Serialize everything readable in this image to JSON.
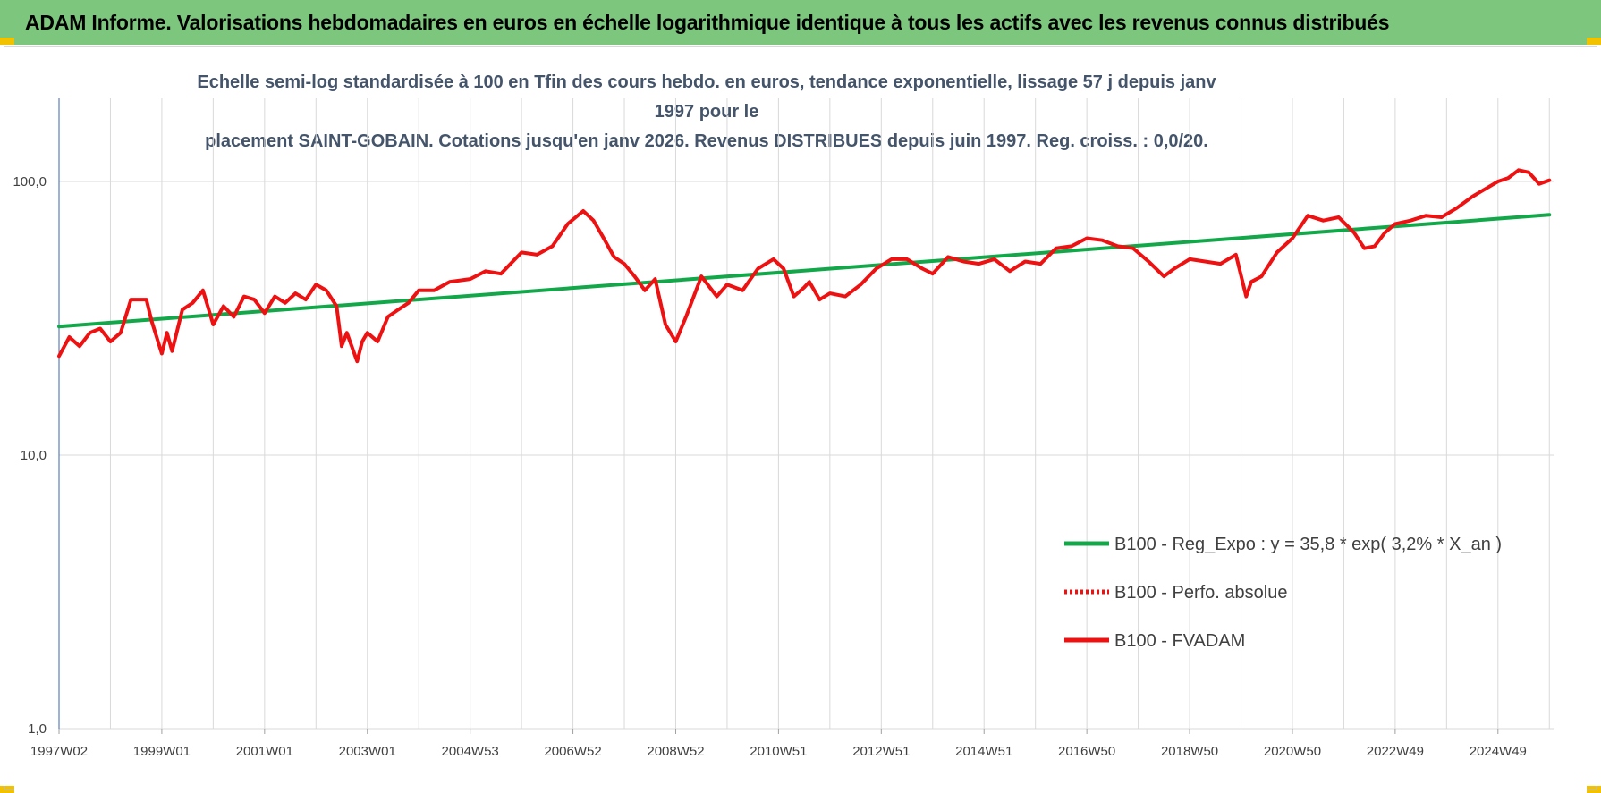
{
  "banner": {
    "title": "ADAM Informe. Valorisations hebdomadaires en euros en échelle logarithmique identique à tous les actifs avec les revenus connus distribués"
  },
  "colors": {
    "banner_bg": "#7dc67d",
    "regression": "#12a84a",
    "series": "#ee1111",
    "title": "#44546a"
  },
  "chart_data": {
    "type": "line",
    "title_lines": [
      "Echelle semi-log standardisée à 100 en Tfin des cours hebdo. en euros, tendance exponentielle, lissage 57 j depuis janv 1997 pour le",
      "placement SAINT-GOBAIN. Cotations jusqu'en janv 2026. Revenus DISTRIBUES depuis juin 1997. Reg. croiss. : 0,0/20."
    ],
    "y_scale": "log",
    "ylim": [
      1,
      200
    ],
    "y_ticks": [
      {
        "value": 1,
        "label": "1,0"
      },
      {
        "value": 10,
        "label": "10,0"
      },
      {
        "value": 100,
        "label": "100,0"
      }
    ],
    "x_range": [
      1997.0,
      2026.1
    ],
    "x_ticks": [
      {
        "x": 1997.0,
        "label": "1997W02"
      },
      {
        "x": 1999.0,
        "label": "1999W01"
      },
      {
        "x": 2001.0,
        "label": "2001W01"
      },
      {
        "x": 2003.0,
        "label": "2003W01"
      },
      {
        "x": 2005.0,
        "label": "2004W53"
      },
      {
        "x": 2007.0,
        "label": "2006W52"
      },
      {
        "x": 2009.0,
        "label": "2008W52"
      },
      {
        "x": 2011.0,
        "label": "2010W51"
      },
      {
        "x": 2013.0,
        "label": "2012W51"
      },
      {
        "x": 2015.0,
        "label": "2014W51"
      },
      {
        "x": 2017.0,
        "label": "2016W50"
      },
      {
        "x": 2019.0,
        "label": "2018W50"
      },
      {
        "x": 2021.0,
        "label": "2020W50"
      },
      {
        "x": 2023.0,
        "label": "2022W49"
      },
      {
        "x": 2025.0,
        "label": "2024W49"
      }
    ],
    "grid": "vertical",
    "legend_position": "right-center",
    "series": [
      {
        "name": "B100 - Reg_Expo : y = 35,8 * exp( 3,2% *  X_an )",
        "color": "#12a84a",
        "style": "solid",
        "x": [
          1997.0,
          2026.0
        ],
        "y": [
          29.5,
          75.5
        ]
      },
      {
        "name": "B100 - Perfo. absolue",
        "color": "#ee1111",
        "style": "dotted",
        "x": [],
        "y": []
      },
      {
        "name": "B100 - FVADAM",
        "color": "#ee1111",
        "style": "solid",
        "x": [
          1997.0,
          1997.2,
          1997.4,
          1997.6,
          1997.8,
          1998.0,
          1998.2,
          1998.4,
          1998.7,
          1998.8,
          1999.0,
          1999.1,
          1999.2,
          1999.4,
          1999.6,
          1999.8,
          2000.0,
          2000.2,
          2000.4,
          2000.6,
          2000.8,
          2001.0,
          2001.2,
          2001.4,
          2001.6,
          2001.8,
          2002.0,
          2002.2,
          2002.4,
          2002.5,
          2002.6,
          2002.8,
          2002.9,
          2003.0,
          2003.2,
          2003.4,
          2003.6,
          2003.8,
          2004.0,
          2004.3,
          2004.6,
          2005.0,
          2005.3,
          2005.6,
          2006.0,
          2006.3,
          2006.6,
          2006.9,
          2007.2,
          2007.4,
          2007.6,
          2007.8,
          2008.0,
          2008.2,
          2008.4,
          2008.6,
          2008.8,
          2009.0,
          2009.2,
          2009.5,
          2009.8,
          2010.0,
          2010.3,
          2010.6,
          2010.9,
          2011.1,
          2011.3,
          2011.5,
          2011.6,
          2011.8,
          2012.0,
          2012.3,
          2012.6,
          2012.9,
          2013.2,
          2013.5,
          2013.8,
          2014.0,
          2014.3,
          2014.6,
          2014.9,
          2015.2,
          2015.5,
          2015.8,
          2016.1,
          2016.4,
          2016.7,
          2017.0,
          2017.3,
          2017.6,
          2017.9,
          2018.2,
          2018.5,
          2018.7,
          2019.0,
          2019.3,
          2019.6,
          2019.9,
          2020.1,
          2020.2,
          2020.4,
          2020.7,
          2021.0,
          2021.3,
          2021.6,
          2021.9,
          2022.2,
          2022.4,
          2022.6,
          2022.8,
          2023.0,
          2023.3,
          2023.6,
          2023.9,
          2024.2,
          2024.5,
          2024.8,
          2025.0,
          2025.2,
          2025.4,
          2025.6,
          2025.8,
          2026.0
        ],
        "y": [
          23.0,
          27.0,
          25.0,
          28.0,
          29.0,
          26.0,
          28.0,
          37.0,
          37.0,
          31.0,
          23.5,
          28.0,
          24.0,
          34.0,
          36.0,
          40.0,
          30.0,
          35.0,
          32.0,
          38.0,
          37.0,
          33.0,
          38.0,
          36.0,
          39.0,
          37.0,
          42.0,
          40.0,
          35.0,
          25.0,
          28.0,
          22.0,
          26.0,
          28.0,
          26.0,
          32.0,
          34.0,
          36.0,
          40.0,
          40.0,
          43.0,
          44.0,
          47.0,
          46.0,
          55.0,
          54.0,
          58.0,
          70.0,
          78.0,
          72.0,
          62.0,
          53.0,
          50.0,
          45.0,
          40.0,
          44.0,
          30.0,
          26.0,
          32.0,
          45.0,
          38.0,
          42.0,
          40.0,
          48.0,
          52.0,
          48.0,
          38.0,
          41.0,
          43.0,
          37.0,
          39.0,
          38.0,
          42.0,
          48.0,
          52.0,
          52.0,
          48.0,
          46.0,
          53.0,
          51.0,
          50.0,
          52.0,
          47.0,
          51.0,
          50.0,
          57.0,
          58.0,
          62.0,
          61.0,
          58.0,
          57.0,
          51.0,
          45.0,
          48.0,
          52.0,
          51.0,
          50.0,
          54.0,
          38.0,
          43.0,
          45.0,
          55.0,
          62.0,
          75.0,
          72.0,
          74.0,
          65.0,
          57.0,
          58.0,
          65.0,
          70.0,
          72.0,
          75.0,
          74.0,
          80.0,
          88.0,
          95.0,
          100.0,
          103.0,
          110.0,
          108.0,
          98.0,
          101.0
        ]
      }
    ]
  }
}
